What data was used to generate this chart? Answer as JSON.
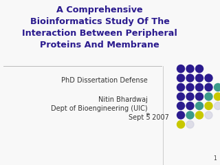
{
  "title_line1": "A Comprehensive",
  "title_line2": "Bioinformatics Study Of The",
  "title_line3": "Interaction Between Peripheral",
  "title_line4": "Proteins And Membrane",
  "title_color": "#2B1B8E",
  "body_color": "#333333",
  "background_color": "#f8f8f8",
  "divider_color": "#bbbbbb",
  "page_num": "1",
  "dot_grid": {
    "rows": 7,
    "cols": 5,
    "colors": [
      [
        "#2B1B8E",
        "#2B1B8E",
        "#2B1B8E",
        "none",
        "none"
      ],
      [
        "#2B1B8E",
        "#2B1B8E",
        "#2B1B8E",
        "#2B1B8E",
        "none"
      ],
      [
        "#2B1B8E",
        "#2B1B8E",
        "#2B1B8E",
        "#2B1B8E",
        "#3A9A8A"
      ],
      [
        "#2B1B8E",
        "#2B1B8E",
        "#2B1B8E",
        "#3A9A8A",
        "#C8C800"
      ],
      [
        "#2B1B8E",
        "#2B1B8E",
        "#3A9A8A",
        "#C8C800",
        "#ccccdd"
      ],
      [
        "#2B1B8E",
        "#3A9A8A",
        "#C8C800",
        "#ccccdd",
        "none"
      ],
      [
        "#C8C800",
        "#ccccdd",
        "none",
        "none",
        "none"
      ]
    ]
  }
}
